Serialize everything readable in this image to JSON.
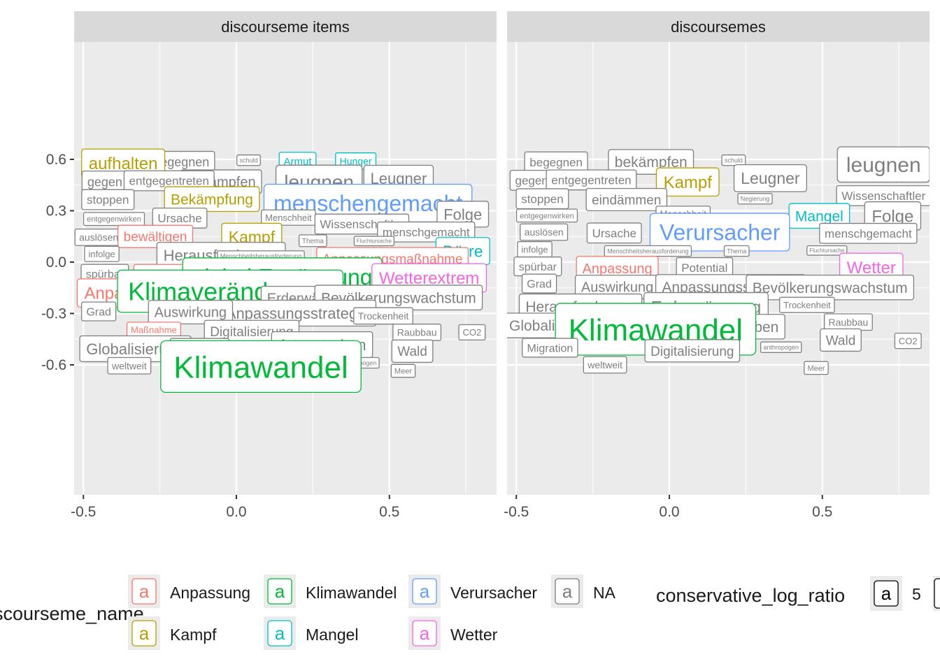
{
  "colors": {
    "Anpassung": "#F8766D",
    "Kampf": "#B79F00",
    "Klimawandel": "#00BA38",
    "Mangel": "#00BFC4",
    "Verursacher": "#619CFF",
    "Wetter": "#F564E3",
    "NA": "#7F7F7F"
  },
  "chart_data": {
    "type": "scatter",
    "x_ticks": [
      "-0.5",
      "0.0",
      "0.5"
    ],
    "y_ticks": [
      "0.6",
      "0.3",
      "0.0",
      "-0.3",
      "-0.6"
    ],
    "panels": [
      {
        "title": "discourseme items",
        "labels": [
          {
            "text": "begegnen",
            "x": -0.18,
            "y": 0.585,
            "size": 18,
            "cat": "NA"
          },
          {
            "text": "schuld",
            "x": 0.04,
            "y": 0.595,
            "size": 9,
            "cat": "NA"
          },
          {
            "text": "Armut",
            "x": 0.2,
            "y": 0.59,
            "size": 15,
            "cat": "Mangel"
          },
          {
            "text": "Hunger",
            "x": 0.39,
            "y": 0.59,
            "size": 14,
            "cat": "Mangel"
          },
          {
            "text": "aufhalten",
            "x": -0.37,
            "y": 0.578,
            "size": 24,
            "cat": "Kampf"
          },
          {
            "text": "gegen",
            "x": -0.43,
            "y": 0.47,
            "size": 18,
            "cat": "NA"
          },
          {
            "text": "bekämpfen",
            "x": -0.05,
            "y": 0.47,
            "size": 20,
            "cat": "NA"
          },
          {
            "text": "entgegentreten",
            "x": -0.22,
            "y": 0.475,
            "size": 17,
            "cat": "NA"
          },
          {
            "text": "leugnen",
            "x": 0.27,
            "y": 0.47,
            "size": 28,
            "cat": "NA"
          },
          {
            "text": "Leugner",
            "x": 0.53,
            "y": 0.49,
            "size": 22,
            "cat": "NA"
          },
          {
            "text": "Negierung",
            "x": 0.62,
            "y": 0.395,
            "size": 9,
            "cat": "NA"
          },
          {
            "text": "stoppen",
            "x": -0.42,
            "y": 0.365,
            "size": 17,
            "cat": "NA"
          },
          {
            "text": "Bekämpfung",
            "x": -0.08,
            "y": 0.368,
            "size": 21,
            "cat": "Kampf"
          },
          {
            "text": "menschengemacht",
            "x": 0.43,
            "y": 0.345,
            "size": 32,
            "cat": "Verursacher"
          },
          {
            "text": "Folge",
            "x": 0.74,
            "y": 0.28,
            "size": 22,
            "cat": "NA"
          },
          {
            "text": "entgegenwirken",
            "x": -0.4,
            "y": 0.252,
            "size": 11,
            "cat": "NA"
          },
          {
            "text": "Ursache",
            "x": -0.185,
            "y": 0.257,
            "size": 17,
            "cat": "NA"
          },
          {
            "text": "Menschheit",
            "x": 0.17,
            "y": 0.26,
            "size": 13,
            "cat": "NA"
          },
          {
            "text": "Wissenschaftler",
            "x": 0.41,
            "y": 0.222,
            "size": 17,
            "cat": "NA"
          },
          {
            "text": "menschgemacht",
            "x": 0.62,
            "y": 0.176,
            "size": 17,
            "cat": "NA"
          },
          {
            "text": "auslösen",
            "x": -0.45,
            "y": 0.145,
            "size": 14,
            "cat": "NA"
          },
          {
            "text": "bewältigen",
            "x": -0.265,
            "y": 0.15,
            "size": 19,
            "cat": "Anpassung"
          },
          {
            "text": "Kampf",
            "x": 0.05,
            "y": 0.148,
            "size": 23,
            "cat": "Kampf"
          },
          {
            "text": "Thema",
            "x": 0.25,
            "y": 0.125,
            "size": 10,
            "cat": "NA"
          },
          {
            "text": "Fluchtursache",
            "x": 0.45,
            "y": 0.123,
            "size": 8,
            "cat": "NA"
          },
          {
            "text": "Dürre",
            "x": 0.74,
            "y": 0.065,
            "size": 23,
            "cat": "Mangel"
          },
          {
            "text": "infolge",
            "x": -0.44,
            "y": 0.048,
            "size": 13,
            "cat": "NA"
          },
          {
            "text": "Herausforderung",
            "x": -0.05,
            "y": 0.04,
            "size": 22,
            "cat": "NA"
          },
          {
            "text": "Menschheitsherausforderung",
            "x": 0.08,
            "y": 0.035,
            "size": 9,
            "cat": "NA"
          },
          {
            "text": "Anpassungsmaßnahme",
            "x": 0.51,
            "y": 0.02,
            "size": 19,
            "cat": "Anpassung"
          },
          {
            "text": "spürbar",
            "x": -0.43,
            "y": -0.068,
            "size": 16,
            "cat": "NA"
          },
          {
            "text": "Bewältigung",
            "x": -0.22,
            "y": -0.068,
            "size": 16,
            "cat": "Anpassung"
          },
          {
            "text": "Sturm",
            "x": 0.41,
            "y": -0.1,
            "size": 9,
            "cat": "Wetter"
          },
          {
            "text": "global Erwärmung",
            "x": 0.15,
            "y": -0.085,
            "size": 32,
            "cat": "Klimawandel"
          },
          {
            "text": "Wetterextrem",
            "x": 0.63,
            "y": -0.092,
            "size": 24,
            "cat": "Wetter"
          },
          {
            "text": "Anpassung",
            "x": -0.36,
            "y": -0.18,
            "size": 24,
            "cat": "Anpassung"
          },
          {
            "text": "Klimaveränderung",
            "x": -0.02,
            "y": -0.17,
            "size": 36,
            "cat": "Klimawandel"
          },
          {
            "text": "Erderwärmung",
            "x": 0.25,
            "y": -0.21,
            "size": 20,
            "cat": "NA"
          },
          {
            "text": "Bevölkerungswachstum",
            "x": 0.53,
            "y": -0.207,
            "size": 21,
            "cat": "NA"
          },
          {
            "text": "Grad",
            "x": -0.45,
            "y": -0.288,
            "size": 16,
            "cat": "NA"
          },
          {
            "text": "Anpassungsstrategie",
            "x": 0.2,
            "y": -0.298,
            "size": 22,
            "cat": "NA"
          },
          {
            "text": "Auswirkung",
            "x": -0.15,
            "y": -0.292,
            "size": 20,
            "cat": "NA"
          },
          {
            "text": "Trockenheit",
            "x": 0.48,
            "y": -0.314,
            "size": 14,
            "cat": "NA"
          },
          {
            "text": "Maßnahme",
            "x": -0.27,
            "y": -0.395,
            "size": 13,
            "cat": "Anpassung"
          },
          {
            "text": "Digitalisierung",
            "x": 0.05,
            "y": -0.405,
            "size": 19,
            "cat": "NA"
          },
          {
            "text": "Raubbau",
            "x": 0.59,
            "y": -0.41,
            "size": 14,
            "cat": "NA"
          },
          {
            "text": "CO2",
            "x": 0.77,
            "y": -0.41,
            "size": 13,
            "cat": "NA"
          },
          {
            "text": "Globalisierung",
            "x": -0.33,
            "y": -0.506,
            "size": 22,
            "cat": "NA"
          },
          {
            "text": "Migration",
            "x": -0.12,
            "y": -0.504,
            "size": 17,
            "cat": "NA"
          },
          {
            "text": "Artensterben",
            "x": 0.28,
            "y": -0.482,
            "size": 22,
            "cat": "NA"
          },
          {
            "text": "Wald",
            "x": 0.575,
            "y": -0.52,
            "size": 19,
            "cat": "NA"
          },
          {
            "text": "anthropogen",
            "x": 0.4,
            "y": -0.588,
            "size": 9,
            "cat": "NA"
          },
          {
            "text": "weltweit",
            "x": -0.35,
            "y": -0.605,
            "size": 14,
            "cat": "NA"
          },
          {
            "text": "Klimawandel",
            "x": 0.08,
            "y": -0.61,
            "size": 44,
            "cat": "Klimawandel"
          },
          {
            "text": "Meer",
            "x": 0.545,
            "y": -0.635,
            "size": 11,
            "cat": "NA"
          }
        ]
      },
      {
        "title": "discoursemes",
        "labels": [
          {
            "text": "begegnen",
            "x": -0.37,
            "y": 0.585,
            "size": 17,
            "cat": "NA"
          },
          {
            "text": "bekämpfen",
            "x": -0.06,
            "y": 0.585,
            "size": 21,
            "cat": "NA"
          },
          {
            "text": "schuld",
            "x": 0.21,
            "y": 0.595,
            "size": 9,
            "cat": "NA"
          },
          {
            "text": "leugnen",
            "x": 0.7,
            "y": 0.57,
            "size": 30,
            "cat": "NA"
          },
          {
            "text": "gegen",
            "x": -0.45,
            "y": 0.478,
            "size": 17,
            "cat": "NA"
          },
          {
            "text": "entgegentreten",
            "x": -0.255,
            "y": 0.48,
            "size": 17,
            "cat": "NA"
          },
          {
            "text": "Kampf",
            "x": 0.06,
            "y": 0.468,
            "size": 24,
            "cat": "Kampf"
          },
          {
            "text": "Leugner",
            "x": 0.33,
            "y": 0.49,
            "size": 23,
            "cat": "NA"
          },
          {
            "text": "stoppen",
            "x": -0.415,
            "y": 0.37,
            "size": 17,
            "cat": "NA"
          },
          {
            "text": "eindämmen",
            "x": -0.14,
            "y": 0.365,
            "size": 19,
            "cat": "NA"
          },
          {
            "text": "Negierung",
            "x": 0.28,
            "y": 0.37,
            "size": 9,
            "cat": "NA"
          },
          {
            "text": "Wissenschaftler",
            "x": 0.7,
            "y": 0.388,
            "size": 17,
            "cat": "NA"
          },
          {
            "text": "entgegenwirken",
            "x": -0.4,
            "y": 0.272,
            "size": 11,
            "cat": "NA"
          },
          {
            "text": "Menschheit",
            "x": 0.045,
            "y": 0.282,
            "size": 13,
            "cat": "NA"
          },
          {
            "text": "Mangel",
            "x": 0.49,
            "y": 0.27,
            "size": 21,
            "cat": "Mangel"
          },
          {
            "text": "Folge",
            "x": 0.73,
            "y": 0.27,
            "size": 24,
            "cat": "NA"
          },
          {
            "text": "auslösen",
            "x": -0.41,
            "y": 0.175,
            "size": 14,
            "cat": "NA"
          },
          {
            "text": "Ursache",
            "x": -0.18,
            "y": 0.17,
            "size": 17,
            "cat": "NA"
          },
          {
            "text": "Verursacher",
            "x": 0.165,
            "y": 0.175,
            "size": 32,
            "cat": "Verursacher"
          },
          {
            "text": "menschgemacht",
            "x": 0.65,
            "y": 0.168,
            "size": 17,
            "cat": "NA"
          },
          {
            "text": "infolge",
            "x": -0.44,
            "y": 0.075,
            "size": 13,
            "cat": "NA"
          },
          {
            "text": "Menschheitsherausforderung",
            "x": -0.07,
            "y": 0.065,
            "size": 9,
            "cat": "NA"
          },
          {
            "text": "Thema",
            "x": 0.22,
            "y": 0.065,
            "size": 9,
            "cat": "NA"
          },
          {
            "text": "Fluchtursache",
            "x": 0.515,
            "y": 0.068,
            "size": 8,
            "cat": "NA"
          },
          {
            "text": "spürbar",
            "x": -0.43,
            "y": -0.025,
            "size": 16,
            "cat": "NA"
          },
          {
            "text": "Anpassung",
            "x": -0.17,
            "y": -0.035,
            "size": 20,
            "cat": "Anpassung"
          },
          {
            "text": "Potential",
            "x": 0.115,
            "y": -0.032,
            "size": 17,
            "cat": "NA"
          },
          {
            "text": "Wetter",
            "x": 0.66,
            "y": -0.03,
            "size": 24,
            "cat": "Wetter"
          },
          {
            "text": "Grad",
            "x": -0.425,
            "y": -0.125,
            "size": 16,
            "cat": "NA"
          },
          {
            "text": "Auswirkung",
            "x": -0.17,
            "y": -0.145,
            "size": 20,
            "cat": "NA"
          },
          {
            "text": "Anpassungsstrategie",
            "x": 0.2,
            "y": -0.145,
            "size": 21,
            "cat": "NA"
          },
          {
            "text": "Bevölkerungswachstum",
            "x": 0.525,
            "y": -0.148,
            "size": 21,
            "cat": "NA"
          },
          {
            "text": "Herausforderung",
            "x": -0.29,
            "y": -0.258,
            "size": 21,
            "cat": "NA"
          },
          {
            "text": "Erderwärmung",
            "x": 0.12,
            "y": -0.26,
            "size": 24,
            "cat": "NA"
          },
          {
            "text": "Trockenheit",
            "x": 0.45,
            "y": -0.25,
            "size": 13,
            "cat": "NA"
          },
          {
            "text": "Globalisierung",
            "x": -0.37,
            "y": -0.37,
            "size": 21,
            "cat": "NA"
          },
          {
            "text": "Artensterben",
            "x": 0.22,
            "y": -0.377,
            "size": 21,
            "cat": "NA"
          },
          {
            "text": "Klimawandel",
            "x": -0.045,
            "y": -0.392,
            "size": 44,
            "cat": "Klimawandel"
          },
          {
            "text": "Raubbau",
            "x": 0.585,
            "y": -0.35,
            "size": 14,
            "cat": "NA"
          },
          {
            "text": "Migration",
            "x": -0.39,
            "y": -0.5,
            "size": 16,
            "cat": "NA"
          },
          {
            "text": "Digitalisierung",
            "x": 0.075,
            "y": -0.518,
            "size": 19,
            "cat": "NA"
          },
          {
            "text": "anthropogen",
            "x": 0.365,
            "y": -0.497,
            "size": 9,
            "cat": "NA"
          },
          {
            "text": "Wald",
            "x": 0.56,
            "y": -0.455,
            "size": 19,
            "cat": "NA"
          },
          {
            "text": "CO2",
            "x": 0.78,
            "y": -0.46,
            "size": 13,
            "cat": "NA"
          },
          {
            "text": "weltweit",
            "x": -0.21,
            "y": -0.6,
            "size": 14,
            "cat": "NA"
          },
          {
            "text": "Meer",
            "x": 0.48,
            "y": -0.618,
            "size": 11,
            "cat": "NA"
          }
        ]
      }
    ],
    "legend": {
      "color_title": "discourseme_name",
      "color_entries": [
        {
          "name": "Anpassung",
          "cat": "Anpassung"
        },
        {
          "name": "Kampf",
          "cat": "Kampf"
        },
        {
          "name": "Klimawandel",
          "cat": "Klimawandel"
        },
        {
          "name": "Mangel",
          "cat": "Mangel"
        },
        {
          "name": "Verursacher",
          "cat": "Verursacher"
        },
        {
          "name": "Wetter",
          "cat": "Wetter"
        },
        {
          "name": "NA",
          "cat": "NA"
        }
      ],
      "glyph": "a",
      "size_title": "conservative_log_ratio",
      "size_entries": [
        "5"
      ]
    }
  }
}
